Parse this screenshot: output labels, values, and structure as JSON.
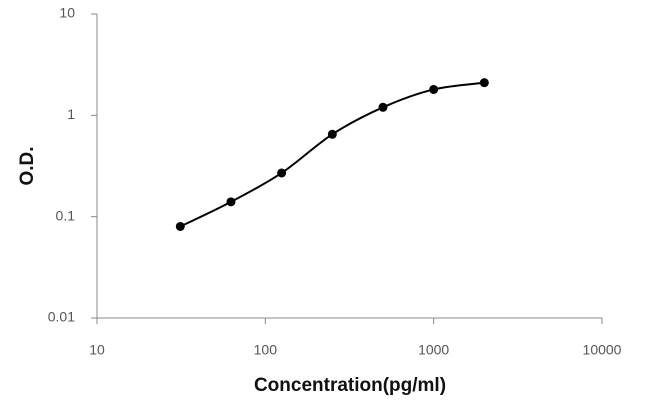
{
  "chart_data": {
    "type": "scatter",
    "x_label": "Concentration(pg/ml)",
    "y_label": "O.D.",
    "x": [
      31.25,
      62.5,
      125,
      250,
      500,
      1000,
      2000
    ],
    "series": [
      {
        "values": [
          0.08,
          0.14,
          0.27,
          0.65,
          1.2,
          1.8,
          2.1
        ],
        "color": "#000000"
      }
    ],
    "xscale": "log",
    "yscale": "log",
    "xlim": [
      10,
      10000
    ],
    "xticks": [
      10,
      100,
      1000,
      10000
    ],
    "ylim": [
      0.01,
      10
    ],
    "yticks": [
      0.01,
      0.1,
      1,
      10
    ],
    "fit_line": true,
    "grid": false
  }
}
